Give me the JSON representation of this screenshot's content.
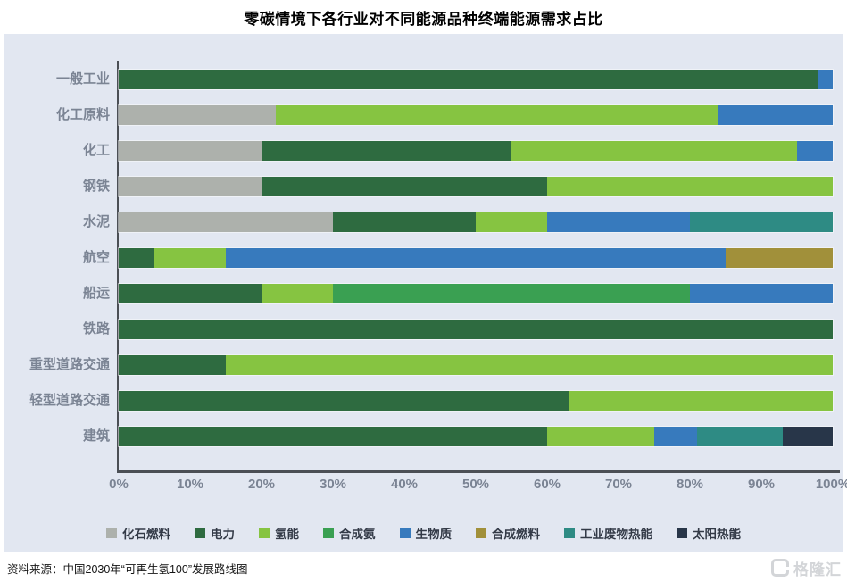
{
  "title": "零碳情境下各行业对不同能源品种终端能源需求占比",
  "chart_data": {
    "type": "bar",
    "variant": "horizontal-stacked",
    "title": "零碳情境下各行业对不同能源品种终端能源需求占比",
    "categories": [
      "一般工业",
      "化工原料",
      "化工",
      "钢铁",
      "水泥",
      "航空",
      "船运",
      "铁路",
      "重型道路交通",
      "轻型道路交通",
      "建筑"
    ],
    "unit": "%",
    "xlim": [
      0,
      100
    ],
    "x_ticks": [
      "0%",
      "10%",
      "20%",
      "30%",
      "40%",
      "50%",
      "60%",
      "70%",
      "80%",
      "90%",
      "100%"
    ],
    "legend_position": "bottom",
    "grid": false,
    "series": [
      {
        "name": "化石燃料",
        "color": "#adb1ac",
        "values": [
          0,
          22,
          20,
          20,
          30,
          0,
          0,
          0,
          0,
          0,
          0
        ]
      },
      {
        "name": "电力",
        "color": "#2e6b40",
        "values": [
          98,
          0,
          35,
          40,
          20,
          5,
          20,
          100,
          15,
          63,
          60
        ]
      },
      {
        "name": "氢能",
        "color": "#86c441",
        "values": [
          0,
          62,
          40,
          40,
          10,
          10,
          10,
          0,
          85,
          37,
          15
        ]
      },
      {
        "name": "合成氨",
        "color": "#3aa052",
        "values": [
          0,
          0,
          0,
          0,
          0,
          0,
          50,
          0,
          0,
          0,
          0
        ]
      },
      {
        "name": "生物质",
        "color": "#377abd",
        "values": [
          2,
          16,
          5,
          0,
          20,
          70,
          20,
          0,
          0,
          0,
          6
        ]
      },
      {
        "name": "合成燃料",
        "color": "#a1903a",
        "values": [
          0,
          0,
          0,
          0,
          0,
          15,
          0,
          0,
          0,
          0,
          0
        ]
      },
      {
        "name": "工业废物热能",
        "color": "#2e8b84",
        "values": [
          0,
          0,
          0,
          0,
          20,
          0,
          0,
          0,
          0,
          0,
          12
        ]
      },
      {
        "name": "太阳热能",
        "color": "#283649",
        "values": [
          0,
          0,
          0,
          0,
          0,
          0,
          0,
          0,
          0,
          0,
          7
        ]
      }
    ]
  },
  "colors": {
    "panel_bg": "#e2e7f1",
    "axis": "#4b4f55",
    "axis_label": "#7b8494",
    "legend_text": "#333a47"
  },
  "footer": {
    "source": "资料来源：中国2030年“可再生氢100”发展路线图",
    "logo_text": "格隆汇"
  }
}
